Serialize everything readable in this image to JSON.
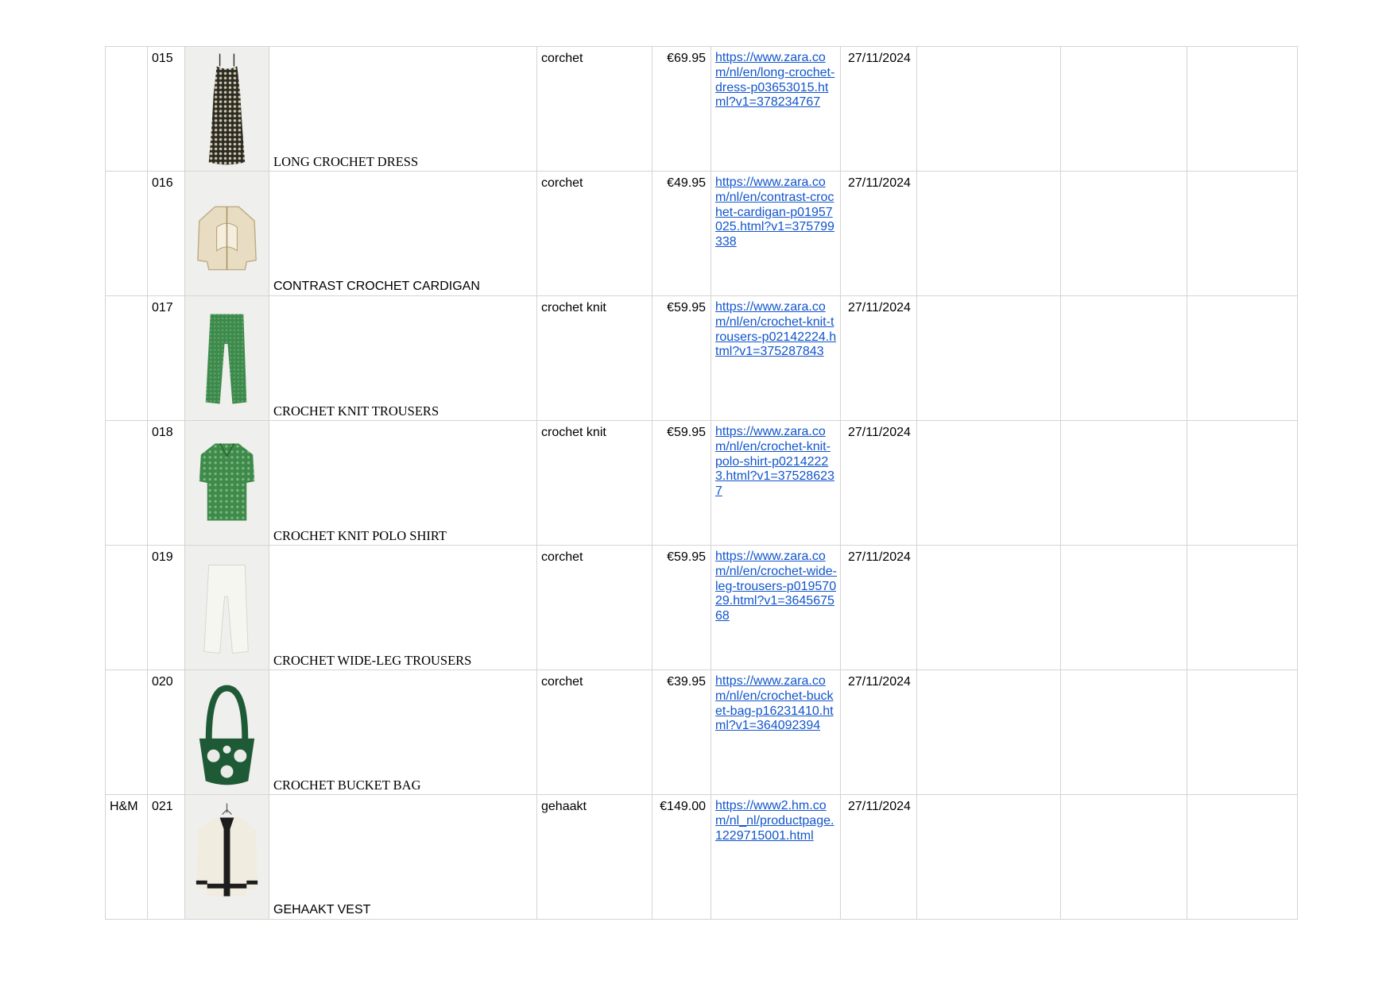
{
  "rows": [
    {
      "brand": "",
      "id": "015",
      "name": "LONG CROCHET DRESS",
      "name_serif": true,
      "material": "corchet",
      "price": "€69.95",
      "url": "https://www.zara.com/nl/en/long-crochet-dress-p03653015.html?v1=378234767",
      "date": "27/11/2024",
      "thumb": "dress-thumbnail"
    },
    {
      "brand": "",
      "id": "016",
      "name": "CONTRAST CROCHET CARDIGAN",
      "name_serif": false,
      "material": "corchet",
      "price": "€49.95",
      "url": "https://www.zara.com/nl/en/contrast-crochet-cardigan-p01957025.html?v1=375799338",
      "date": "27/11/2024",
      "thumb": "cardigan-thumbnail"
    },
    {
      "brand": "",
      "id": "017",
      "name": "CROCHET KNIT TROUSERS",
      "name_serif": true,
      "material": "crochet knit",
      "price": "€59.95",
      "url": "https://www.zara.com/nl/en/crochet-knit-trousers-p02142224.html?v1=375287843",
      "date": "27/11/2024",
      "thumb": "green-trousers-thumbnail"
    },
    {
      "brand": "",
      "id": "018",
      "name": "CROCHET KNIT POLO SHIRT",
      "name_serif": true,
      "material": "crochet knit",
      "price": "€59.95",
      "url": "https://www.zara.com/nl/en/crochet-knit-polo-shirt-p02142223.html?v1=375286237",
      "date": "27/11/2024",
      "thumb": "polo-shirt-thumbnail"
    },
    {
      "brand": "",
      "id": "019",
      "name": "CROCHET WIDE-LEG TROUSERS",
      "name_serif": true,
      "material": "corchet",
      "price": "€59.95",
      "url": "https://www.zara.com/nl/en/crochet-wide-leg-trousers-p01957029.html?v1=364567568",
      "date": "27/11/2024",
      "thumb": "white-trousers-thumbnail"
    },
    {
      "brand": "",
      "id": "020",
      "name": "CROCHET BUCKET BAG",
      "name_serif": true,
      "material": "corchet",
      "price": "€39.95",
      "url": "https://www.zara.com/nl/en/crochet-bucket-bag-p16231410.html?v1=364092394",
      "date": "27/11/2024",
      "thumb": "bucket-bag-thumbnail"
    },
    {
      "brand": "H&M",
      "id": "021",
      "name": "GEHAAKT VEST",
      "name_serif": false,
      "material": "gehaakt",
      "price": "€149.00",
      "url": "https://www2.hm.com/nl_nl/productpage.1229715001.html",
      "date": "27/11/2024",
      "thumb": "vest-thumbnail"
    }
  ]
}
